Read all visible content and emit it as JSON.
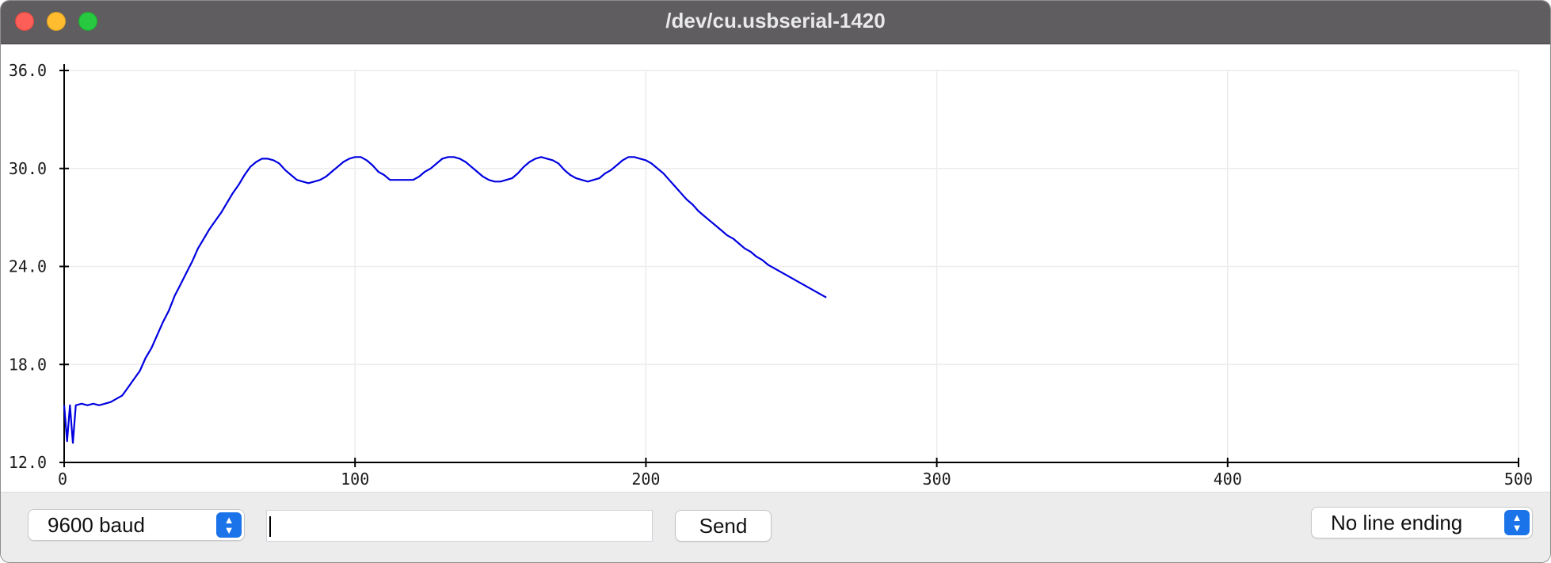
{
  "window": {
    "title": "/dev/cu.usbserial-1420"
  },
  "controls": {
    "baud_label": "9600 baud",
    "message_value": "",
    "send_label": "Send",
    "line_ending_label": "No line ending"
  },
  "colors": {
    "series": "#0000e0",
    "grid": "#ececec",
    "axis": "#000000"
  },
  "chart_data": {
    "type": "line",
    "title": "",
    "xlabel": "",
    "ylabel": "",
    "xlim": [
      0,
      500
    ],
    "ylim": [
      12.0,
      36.0
    ],
    "x_ticks": [
      0,
      100,
      200,
      300,
      400,
      500
    ],
    "y_ticks": [
      12.0,
      18.0,
      24.0,
      30.0,
      36.0
    ],
    "x_tick_labels": [
      "0",
      "100",
      "200",
      "300",
      "400",
      "500"
    ],
    "y_tick_labels": [
      "12.0",
      "18.0",
      "24.0",
      "30.0",
      "36.0"
    ],
    "grid": true,
    "legend": "none",
    "series": [
      {
        "points": [
          [
            0,
            15.5
          ],
          [
            1,
            13.3
          ],
          [
            2,
            15.5
          ],
          [
            3,
            13.2
          ],
          [
            4,
            15.5
          ],
          [
            6,
            15.6
          ],
          [
            8,
            15.5
          ],
          [
            10,
            15.6
          ],
          [
            12,
            15.5
          ],
          [
            14,
            15.6
          ],
          [
            16,
            15.7
          ],
          [
            18,
            15.9
          ],
          [
            20,
            16.1
          ],
          [
            22,
            16.6
          ],
          [
            24,
            17.1
          ],
          [
            26,
            17.6
          ],
          [
            28,
            18.4
          ],
          [
            30,
            19.0
          ],
          [
            32,
            19.8
          ],
          [
            34,
            20.6
          ],
          [
            36,
            21.3
          ],
          [
            38,
            22.2
          ],
          [
            40,
            22.9
          ],
          [
            42,
            23.6
          ],
          [
            44,
            24.3
          ],
          [
            46,
            25.1
          ],
          [
            48,
            25.7
          ],
          [
            50,
            26.3
          ],
          [
            52,
            26.8
          ],
          [
            54,
            27.3
          ],
          [
            56,
            27.9
          ],
          [
            58,
            28.5
          ],
          [
            60,
            29.0
          ],
          [
            62,
            29.6
          ],
          [
            64,
            30.1
          ],
          [
            66,
            30.4
          ],
          [
            68,
            30.6
          ],
          [
            70,
            30.6
          ],
          [
            72,
            30.5
          ],
          [
            74,
            30.3
          ],
          [
            76,
            29.9
          ],
          [
            78,
            29.6
          ],
          [
            80,
            29.3
          ],
          [
            82,
            29.2
          ],
          [
            84,
            29.1
          ],
          [
            86,
            29.2
          ],
          [
            88,
            29.3
          ],
          [
            90,
            29.5
          ],
          [
            92,
            29.8
          ],
          [
            94,
            30.1
          ],
          [
            96,
            30.4
          ],
          [
            98,
            30.6
          ],
          [
            100,
            30.7
          ],
          [
            102,
            30.7
          ],
          [
            104,
            30.5
          ],
          [
            106,
            30.2
          ],
          [
            108,
            29.8
          ],
          [
            110,
            29.6
          ],
          [
            112,
            29.3
          ],
          [
            114,
            29.3
          ],
          [
            116,
            29.3
          ],
          [
            118,
            29.3
          ],
          [
            120,
            29.3
          ],
          [
            122,
            29.5
          ],
          [
            124,
            29.8
          ],
          [
            126,
            30.0
          ],
          [
            128,
            30.3
          ],
          [
            130,
            30.6
          ],
          [
            132,
            30.7
          ],
          [
            134,
            30.7
          ],
          [
            136,
            30.6
          ],
          [
            138,
            30.4
          ],
          [
            140,
            30.1
          ],
          [
            142,
            29.8
          ],
          [
            144,
            29.5
          ],
          [
            146,
            29.3
          ],
          [
            148,
            29.2
          ],
          [
            150,
            29.2
          ],
          [
            152,
            29.3
          ],
          [
            154,
            29.4
          ],
          [
            156,
            29.7
          ],
          [
            158,
            30.1
          ],
          [
            160,
            30.4
          ],
          [
            162,
            30.6
          ],
          [
            164,
            30.7
          ],
          [
            166,
            30.6
          ],
          [
            168,
            30.5
          ],
          [
            170,
            30.3
          ],
          [
            172,
            29.9
          ],
          [
            174,
            29.6
          ],
          [
            176,
            29.4
          ],
          [
            178,
            29.3
          ],
          [
            180,
            29.2
          ],
          [
            182,
            29.3
          ],
          [
            184,
            29.4
          ],
          [
            186,
            29.7
          ],
          [
            188,
            29.9
          ],
          [
            190,
            30.2
          ],
          [
            192,
            30.5
          ],
          [
            194,
            30.7
          ],
          [
            196,
            30.7
          ],
          [
            198,
            30.6
          ],
          [
            200,
            30.5
          ],
          [
            202,
            30.3
          ],
          [
            204,
            30.0
          ],
          [
            206,
            29.7
          ],
          [
            208,
            29.3
          ],
          [
            210,
            28.9
          ],
          [
            212,
            28.5
          ],
          [
            214,
            28.1
          ],
          [
            216,
            27.8
          ],
          [
            218,
            27.4
          ],
          [
            220,
            27.1
          ],
          [
            222,
            26.8
          ],
          [
            224,
            26.5
          ],
          [
            226,
            26.2
          ],
          [
            228,
            25.9
          ],
          [
            230,
            25.7
          ],
          [
            232,
            25.4
          ],
          [
            234,
            25.1
          ],
          [
            236,
            24.9
          ],
          [
            238,
            24.6
          ],
          [
            240,
            24.4
          ],
          [
            242,
            24.1
          ],
          [
            244,
            23.9
          ],
          [
            246,
            23.7
          ],
          [
            248,
            23.5
          ],
          [
            250,
            23.3
          ],
          [
            252,
            23.1
          ],
          [
            254,
            22.9
          ],
          [
            256,
            22.7
          ],
          [
            258,
            22.5
          ],
          [
            260,
            22.3
          ],
          [
            262,
            22.1
          ]
        ]
      }
    ]
  }
}
